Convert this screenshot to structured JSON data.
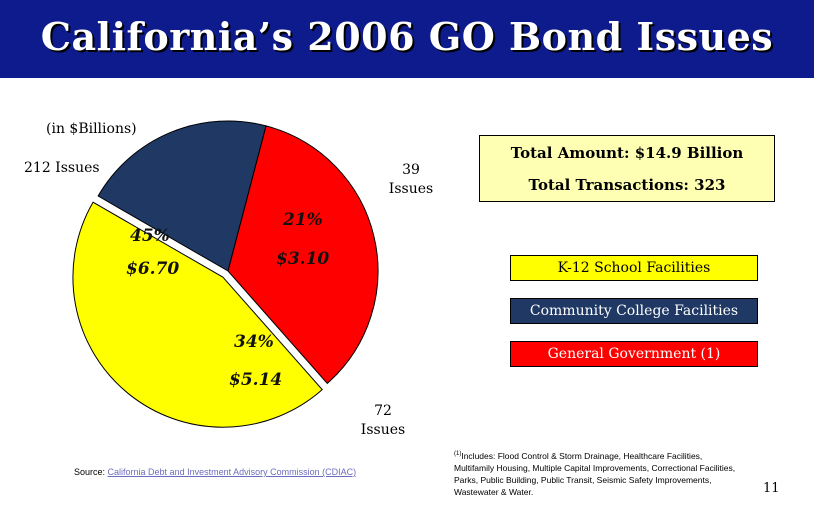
{
  "title": "California’s 2006 GO Bond Issues",
  "units_note": "(in $Billions)",
  "chart_data": {
    "type": "pie",
    "slices": [
      {
        "name": "K-12 School Facilities",
        "value": 6.7,
        "value_label": "$6.70",
        "percent": 45,
        "percent_label": "45%",
        "count_label": "212 Issues",
        "color": "#ffff00"
      },
      {
        "name": "Community College Facilities",
        "value": 3.1,
        "value_label": "$3.10",
        "percent": 21,
        "percent_label": "21%",
        "count_label_line1": "39",
        "count_label_line2": "Issues",
        "color": "#1f3864"
      },
      {
        "name": "General Government (1)",
        "value": 5.14,
        "value_label": "$5.14",
        "percent": 34,
        "percent_label": "34%",
        "count_label_line1": "72",
        "count_label_line2": "Issues",
        "color": "#ff0000"
      }
    ],
    "legend": [
      "K-12 School Facilities",
      "Community College Facilities",
      "General Government (1)"
    ],
    "legend_position": "right"
  },
  "totals": {
    "amount": "Total Amount: $14.9 Billion",
    "transactions": "Total Transactions: 323"
  },
  "source": {
    "prefix": "Source: ",
    "link_text": "California Debt and Investment Advisory Commission (CDIAC)"
  },
  "footnote": {
    "marker": "(1)",
    "text": "Includes: Flood Control & Storm Drainage, Healthcare Facilities, Multifamily Housing, Multiple Capital Improvements, Correctional Facilities, Parks, Public Building, Public Transit, Seismic Safety Improvements, Wastewater & Water."
  },
  "page_number": "11"
}
